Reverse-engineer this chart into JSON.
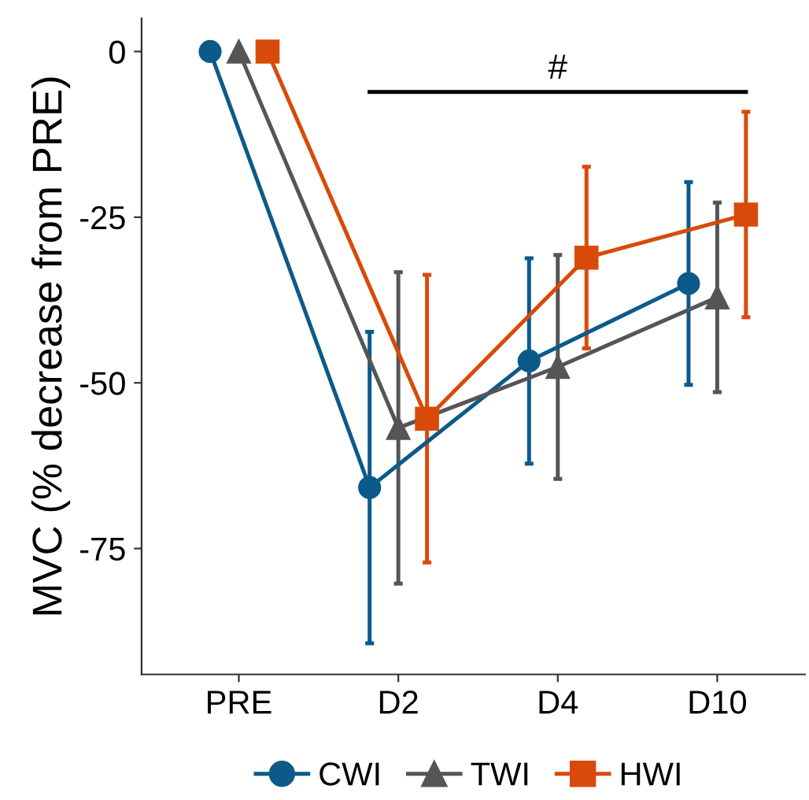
{
  "chart_data": {
    "type": "line",
    "ylabel": "MVC (% decrease from PRE)",
    "categories": [
      "PRE",
      "D2",
      "D4",
      "D10"
    ],
    "series": [
      {
        "name": "CWI",
        "color": "#0b5a8a",
        "marker": "circle",
        "values": [
          0,
          -65.8,
          -46.7,
          -35.0
        ],
        "errors": [
          null,
          23.5,
          15.5,
          15.3
        ]
      },
      {
        "name": "TWI",
        "color": "#555555",
        "marker": "triangle",
        "values": [
          0,
          -56.8,
          -47.6,
          -37.1
        ],
        "errors": [
          null,
          23.5,
          16.9,
          14.3
        ]
      },
      {
        "name": "HWI",
        "color": "#d94a0a",
        "marker": "square",
        "values": [
          0,
          -55.4,
          -31.1,
          -24.6
        ],
        "errors": [
          null,
          21.7,
          13.7,
          15.5
        ]
      }
    ],
    "ylim": [
      -94,
      5
    ],
    "yticks": [
      0,
      -25,
      -50,
      -75
    ],
    "grid": false,
    "legend": "bottom",
    "line_style": "solid",
    "annotations": [
      "#"
    ]
  }
}
